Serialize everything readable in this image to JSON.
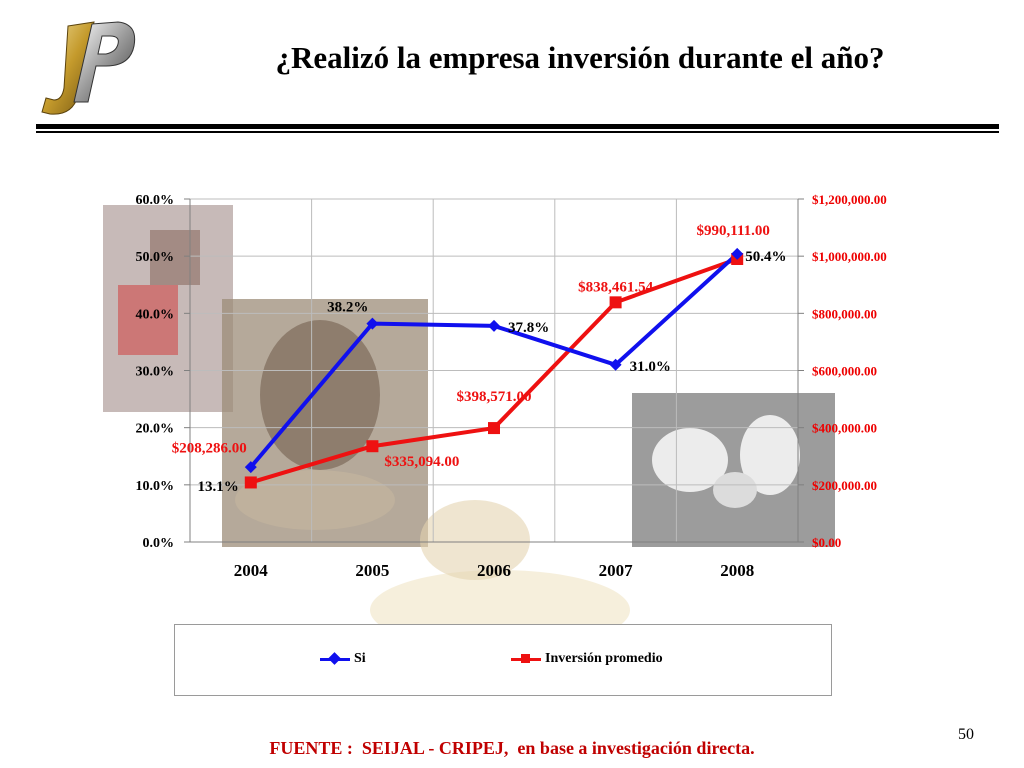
{
  "slide": {
    "title": "¿Realizó la empresa inversión durante el año?",
    "page_number": "50",
    "footer": "FUENTE :  SEIJAL - CRIPEJ,  en base a investigación directa.",
    "logo_icon": "jp-logo-icon"
  },
  "colors": {
    "series_si": "#1010ee",
    "series_inversion": "#ee1111",
    "left_axis_text": "#000000",
    "right_axis_text": "#ee0000",
    "footer_text": "#c00000"
  },
  "chart_data": {
    "type": "line",
    "title": "",
    "categories": [
      "2004",
      "2005",
      "2006",
      "2007",
      "2008"
    ],
    "y_left": {
      "min": 0,
      "max": 60,
      "ticks": [
        "0.0%",
        "10.0%",
        "20.0%",
        "30.0%",
        "40.0%",
        "50.0%",
        "60.0%"
      ]
    },
    "y_right": {
      "min": 0,
      "max": 1200000,
      "ticks": [
        "$0.00",
        "$200,000.00",
        "$400,000.00",
        "$600,000.00",
        "$800,000.00",
        "$1,000,000.00",
        "$1,200,000.00"
      ]
    },
    "grid": true,
    "legend_position": "bottom",
    "series": [
      {
        "name": "Si",
        "axis": "left",
        "marker": "diamond",
        "values": [
          13.1,
          38.2,
          37.8,
          31.0,
          50.4
        ],
        "labels": [
          "13.1%",
          "38.2%",
          "37.8%",
          "31.0%",
          "50.4%"
        ]
      },
      {
        "name": "Inversión promedio",
        "axis": "right",
        "marker": "square",
        "values": [
          208286,
          335094,
          398571,
          838461.54,
          990111
        ],
        "labels": [
          "$208,286.00",
          "$335,094.00",
          "$398,571.00",
          "$838,461.54",
          "$990,111.00"
        ]
      }
    ]
  }
}
